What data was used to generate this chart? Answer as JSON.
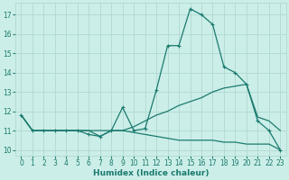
{
  "xlabel": "Humidex (Indice chaleur)",
  "background_color": "#cceee8",
  "grid_color": "#b0d8d2",
  "line_color": "#1a7a6e",
  "xlim": [
    -0.5,
    23.5
  ],
  "ylim": [
    9.7,
    17.6
  ],
  "yticks": [
    10,
    11,
    12,
    13,
    14,
    15,
    16,
    17
  ],
  "xticks": [
    0,
    1,
    2,
    3,
    4,
    5,
    6,
    7,
    8,
    9,
    10,
    11,
    12,
    13,
    14,
    15,
    16,
    17,
    18,
    19,
    20,
    21,
    22,
    23
  ],
  "line1_x": [
    0,
    1,
    2,
    3,
    4,
    5,
    6,
    7,
    8,
    9,
    10,
    11,
    12,
    13,
    14,
    15,
    16,
    17,
    18,
    19,
    20,
    21,
    22,
    23
  ],
  "line1_y": [
    11.8,
    11.0,
    11.0,
    11.0,
    11.0,
    11.0,
    10.8,
    10.7,
    11.0,
    12.2,
    11.0,
    11.1,
    13.1,
    15.4,
    15.4,
    17.3,
    17.0,
    16.5,
    14.3,
    14.0,
    13.4,
    11.5,
    11.0,
    10.0
  ],
  "line2_x": [
    0,
    1,
    2,
    3,
    4,
    5,
    6,
    7,
    8,
    9,
    10,
    11,
    12,
    13,
    14,
    15,
    16,
    17,
    18,
    19,
    20,
    21,
    22,
    23
  ],
  "line2_y": [
    11.8,
    11.0,
    11.0,
    11.0,
    11.0,
    11.0,
    11.0,
    11.0,
    11.0,
    11.0,
    11.2,
    11.5,
    11.8,
    12.0,
    12.3,
    12.5,
    12.7,
    13.0,
    13.2,
    13.3,
    13.4,
    11.7,
    11.5,
    11.0
  ],
  "line3_x": [
    0,
    1,
    2,
    3,
    4,
    5,
    6,
    7,
    8,
    9,
    10,
    11,
    12,
    13,
    14,
    15,
    16,
    17,
    18,
    19,
    20,
    21,
    22,
    23
  ],
  "line3_y": [
    11.8,
    11.0,
    11.0,
    11.0,
    11.0,
    11.0,
    11.0,
    10.7,
    11.0,
    11.0,
    10.9,
    10.8,
    10.7,
    10.6,
    10.5,
    10.5,
    10.5,
    10.5,
    10.4,
    10.4,
    10.3,
    10.3,
    10.3,
    10.0
  ]
}
